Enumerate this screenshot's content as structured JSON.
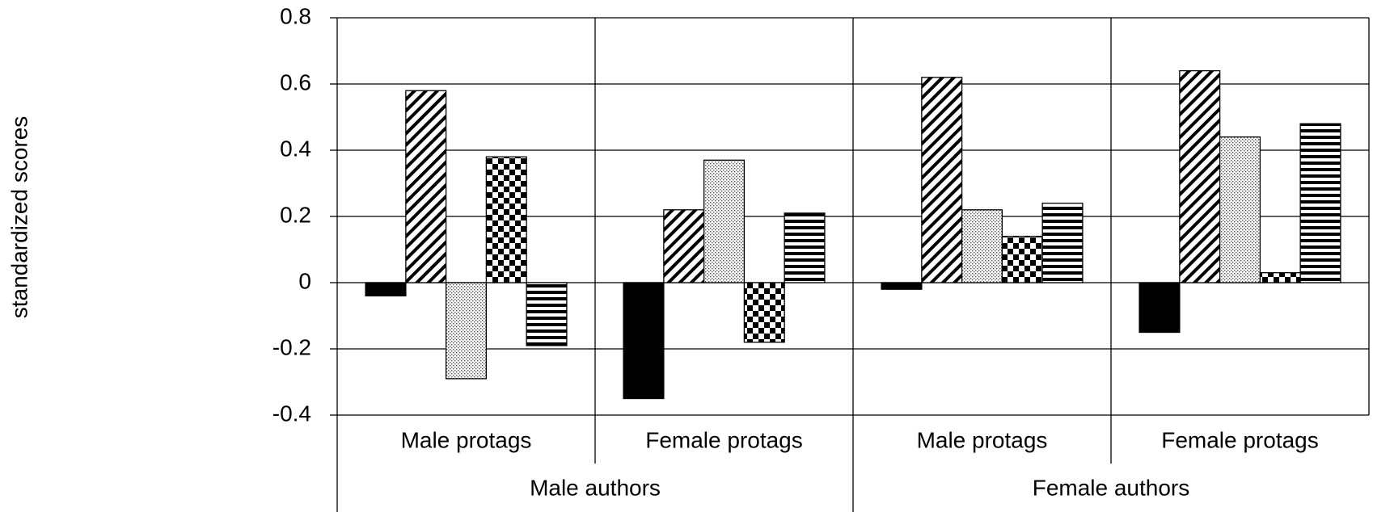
{
  "chart_data": {
    "type": "bar",
    "y_label": "standardized scores",
    "categories": [
      "Male protags",
      "Female protags",
      "Male protags",
      "Female protags"
    ],
    "groups": [
      "Male authors",
      "Female authors"
    ],
    "series": [
      {
        "color": "#000000",
        "pattern": "solid",
        "values": [
          -0.04,
          -0.35,
          -0.02,
          -0.15
        ]
      },
      {
        "color": "#000000",
        "pattern": "diagonal",
        "values": [
          0.58,
          0.22,
          0.62,
          0.64
        ]
      },
      {
        "color": "#000000",
        "pattern": "dots",
        "values": [
          -0.29,
          0.37,
          0.22,
          0.44
        ]
      },
      {
        "color": "#000000",
        "pattern": "checker",
        "values": [
          0.38,
          -0.18,
          0.14,
          0.03
        ]
      },
      {
        "color": "#000000",
        "pattern": "horizontal",
        "values": [
          -0.19,
          0.21,
          0.24,
          0.48
        ]
      }
    ],
    "ylim": [
      -0.4,
      0.8
    ],
    "yticks": [
      {
        "value": -0.4,
        "label": "-0.4"
      },
      {
        "value": -0.2,
        "label": "-0.2"
      },
      0,
      0.2,
      0.4,
      0.6,
      0.8
    ],
    "grid": true
  }
}
